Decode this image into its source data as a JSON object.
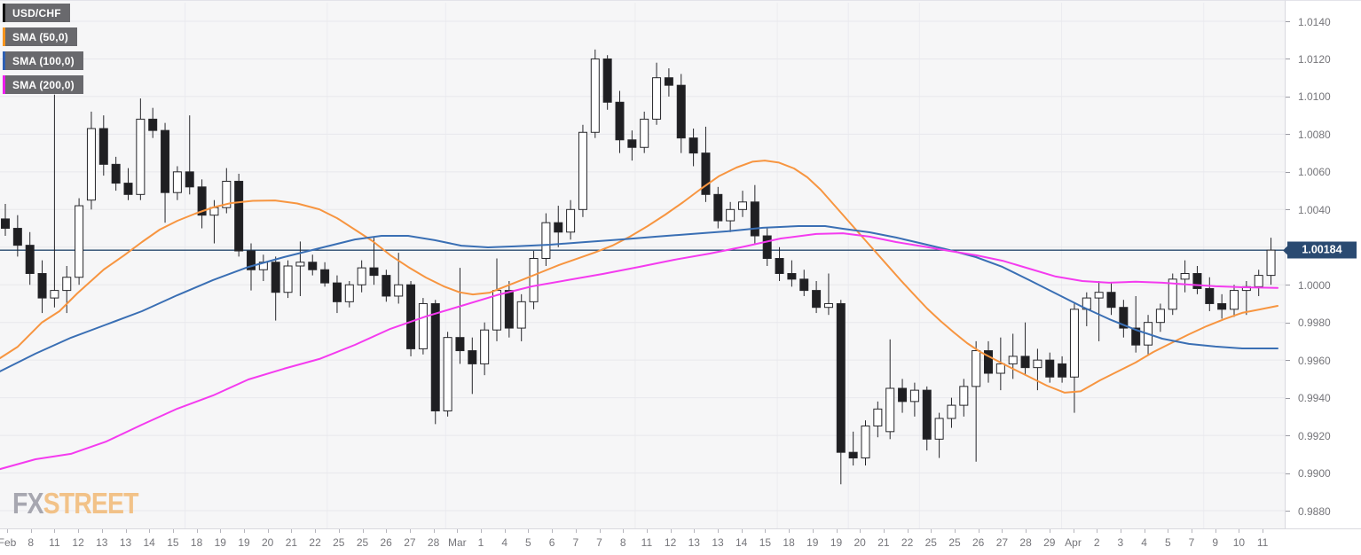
{
  "legend": {
    "symbol": {
      "label": "USD/CHF",
      "strip_color": "#111111"
    },
    "sma50": {
      "label": "SMA (50,0)",
      "strip_color": "#f7941d"
    },
    "sma100": {
      "label": "SMA (100,0)",
      "strip_color": "#2d5fb3"
    },
    "sma200": {
      "label": "SMA (200,0)",
      "strip_color": "#ee1cee"
    }
  },
  "watermark": {
    "fx": "FX",
    "street": "STREET"
  },
  "price_tag": {
    "text": "1.00184"
  },
  "colors": {
    "plot_bg": "#f6f6f7",
    "grid_h": "#e8e8ec",
    "grid_v": "#ececf0",
    "up_fill": "#ffffff",
    "down_fill": "#1f1f22",
    "candle_line": "#26262a",
    "sma50": "#f79540",
    "sma100": "#3a6fb4",
    "sma200": "#f43bef",
    "price_line": "#27496e",
    "axis_text": "#75757a"
  },
  "chart_data": {
    "type": "candlestick",
    "title": "USD/CHF",
    "indicators": [
      "SMA (50,0)",
      "SMA (100,0)",
      "SMA (200,0)"
    ],
    "last_price": 1.00184,
    "y_axis": {
      "min": 0.9868,
      "max": 1.0147,
      "tick_values": [
        1.014,
        1.012,
        1.01,
        1.008,
        1.006,
        1.004,
        1.002,
        1.0,
        0.998,
        0.996,
        0.994,
        0.992,
        0.99,
        0.988
      ],
      "tick_labels": [
        "1.0140",
        "1.0120",
        "1.0100",
        "1.0080",
        "1.0060",
        "1.0040",
        "",
        "1.0000",
        "0.9980",
        "0.9960",
        "0.9940",
        "0.9920",
        "0.9900",
        "0.9880"
      ]
    },
    "x_labels": [
      "Feb",
      "8",
      "11",
      "12",
      "13",
      "13",
      "14",
      "15",
      "18",
      "19",
      "19",
      "20",
      "21",
      "22",
      "25",
      "25",
      "26",
      "27",
      "28",
      "Mar",
      "1",
      "4",
      "5",
      "6",
      "7",
      "7",
      "8",
      "11",
      "12",
      "13",
      "13",
      "14",
      "15",
      "18",
      "19",
      "19",
      "20",
      "21",
      "22",
      "25",
      "25",
      "26",
      "27",
      "28",
      "29",
      "Apr",
      "2",
      "3",
      "4",
      "5",
      "7",
      "9",
      "10",
      "11"
    ],
    "v_gridline_label_idx": [
      8,
      14,
      19,
      27,
      33,
      36,
      39,
      45,
      51
    ],
    "candles_ohlc": [
      [
        1.0035,
        1.0043,
        1.0026,
        1.003
      ],
      [
        1.003,
        1.0037,
        1.0015,
        1.0021
      ],
      [
        1.0021,
        1.0028,
        1.0,
        1.0006
      ],
      [
        1.0006,
        1.0013,
        0.9985,
        0.9993
      ],
      [
        0.9993,
        1.0101,
        0.9988,
        0.9997
      ],
      [
        0.9997,
        1.001,
        0.9985,
        1.0004
      ],
      [
        1.0004,
        1.0046,
        1.0,
        1.0042
      ],
      [
        1.0045,
        1.0092,
        1.004,
        1.0083
      ],
      [
        1.0083,
        1.009,
        1.0058,
        1.0064
      ],
      [
        1.0064,
        1.0068,
        1.005,
        1.0054
      ],
      [
        1.0054,
        1.0062,
        1.0045,
        1.0048
      ],
      [
        1.0048,
        1.0099,
        1.0045,
        1.0088
      ],
      [
        1.0088,
        1.0094,
        1.0078,
        1.0082
      ],
      [
        1.0082,
        1.0086,
        1.0033,
        1.0049
      ],
      [
        1.0049,
        1.0063,
        1.0045,
        1.006
      ],
      [
        1.006,
        1.009,
        1.0048,
        1.0052
      ],
      [
        1.0052,
        1.0056,
        1.003,
        1.0037
      ],
      [
        1.0037,
        1.0045,
        1.0022,
        1.0041
      ],
      [
        1.0041,
        1.0062,
        1.0038,
        1.0055
      ],
      [
        1.0055,
        1.0059,
        1.0015,
        1.0018
      ],
      [
        1.0018,
        1.0022,
        0.9997,
        1.0008
      ],
      [
        1.0008,
        1.0016,
        1.0002,
        1.0012
      ],
      [
        1.0012,
        1.0015,
        0.9981,
        0.9996
      ],
      [
        0.9996,
        1.0013,
        0.9993,
        1.001
      ],
      [
        1.001,
        1.0023,
        0.9994,
        1.0012
      ],
      [
        1.0012,
        1.0016,
        1.0005,
        1.0008
      ],
      [
        1.0008,
        1.0012,
        0.9999,
        1.0001
      ],
      [
        1.0001,
        1.0005,
        0.9985,
        0.9991
      ],
      [
        0.9991,
        1.0002,
        0.9988,
        1.0
      ],
      [
        1.0,
        1.0013,
        0.9996,
        1.0009
      ],
      [
        1.0009,
        1.0025,
        1.0,
        1.0005
      ],
      [
        1.0005,
        1.0008,
        0.9991,
        0.9994
      ],
      [
        0.9994,
        1.0017,
        0.999,
        1.0
      ],
      [
        1.0,
        1.0002,
        0.9962,
        0.9966
      ],
      [
        0.9966,
        0.9993,
        0.9963,
        0.999
      ],
      [
        0.999,
        0.9992,
        0.9926,
        0.9933
      ],
      [
        0.9933,
        0.9975,
        0.993,
        0.9972
      ],
      [
        0.9972,
        1.0009,
        0.9958,
        0.9965
      ],
      [
        0.9965,
        0.9972,
        0.9942,
        0.9958
      ],
      [
        0.9958,
        0.998,
        0.9952,
        0.9976
      ],
      [
        0.9976,
        1.0014,
        0.997,
        0.9997
      ],
      [
        0.9997,
        1.0002,
        0.9972,
        0.9977
      ],
      [
        0.9977,
        0.9995,
        0.997,
        0.9991
      ],
      [
        0.9991,
        1.0018,
        0.9987,
        1.0014
      ],
      [
        1.0014,
        1.0038,
        1.001,
        1.0033
      ],
      [
        1.0033,
        1.0042,
        1.002,
        1.0028
      ],
      [
        1.0028,
        1.0045,
        1.0024,
        1.004
      ],
      [
        1.004,
        1.0085,
        1.0036,
        1.0081
      ],
      [
        1.0081,
        1.0125,
        1.0078,
        1.012
      ],
      [
        1.012,
        1.0122,
        1.0093,
        1.0097
      ],
      [
        1.0097,
        1.0103,
        1.007,
        1.0077
      ],
      [
        1.0077,
        1.0082,
        1.0066,
        1.0073
      ],
      [
        1.0073,
        1.0092,
        1.007,
        1.0088
      ],
      [
        1.0088,
        1.0118,
        1.0085,
        1.011
      ],
      [
        1.011,
        1.0115,
        1.01,
        1.0106
      ],
      [
        1.0106,
        1.0112,
        1.007,
        1.0078
      ],
      [
        1.0078,
        1.0083,
        1.0063,
        1.007
      ],
      [
        1.007,
        1.0084,
        1.0044,
        1.0048
      ],
      [
        1.0048,
        1.0052,
        1.003,
        1.0034
      ],
      [
        1.0034,
        1.0044,
        1.0028,
        1.004
      ],
      [
        1.004,
        1.005,
        1.0036,
        1.0044
      ],
      [
        1.0044,
        1.0053,
        1.0022,
        1.0026
      ],
      [
        1.0026,
        1.003,
        1.001,
        1.0014
      ],
      [
        1.0014,
        1.002,
        1.0002,
        1.0006
      ],
      [
        1.0006,
        1.0013,
        0.9999,
        1.0003
      ],
      [
        1.0003,
        1.0008,
        0.9994,
        0.9997
      ],
      [
        0.9997,
        1.0002,
        0.9985,
        0.9988
      ],
      [
        0.9988,
        1.0006,
        0.9984,
        0.999
      ],
      [
        0.999,
        0.9992,
        0.9894,
        0.9911
      ],
      [
        0.9911,
        0.9922,
        0.9904,
        0.9908
      ],
      [
        0.9908,
        0.9928,
        0.9904,
        0.9925
      ],
      [
        0.9925,
        0.9938,
        0.9919,
        0.9934
      ],
      [
        0.9922,
        0.9971,
        0.9918,
        0.9945
      ],
      [
        0.9945,
        0.995,
        0.9932,
        0.9938
      ],
      [
        0.9938,
        0.9948,
        0.993,
        0.9944
      ],
      [
        0.9944,
        0.9946,
        0.9912,
        0.9918
      ],
      [
        0.9918,
        0.9932,
        0.9908,
        0.9929
      ],
      [
        0.9929,
        0.994,
        0.9924,
        0.9936
      ],
      [
        0.9936,
        0.995,
        0.993,
        0.9946
      ],
      [
        0.9946,
        0.997,
        0.9906,
        0.9965
      ],
      [
        0.9965,
        0.997,
        0.9948,
        0.9953
      ],
      [
        0.9953,
        0.9972,
        0.9944,
        0.9958
      ],
      [
        0.9958,
        0.9974,
        0.995,
        0.9962
      ],
      [
        0.9962,
        0.998,
        0.9952,
        0.9956
      ],
      [
        0.9956,
        0.9966,
        0.9944,
        0.996
      ],
      [
        0.996,
        0.9964,
        0.9948,
        0.9951
      ],
      [
        0.9958,
        0.9962,
        0.9948,
        0.9951
      ],
      [
        0.9951,
        0.999,
        0.9932,
        0.9987
      ],
      [
        0.9987,
        0.9996,
        0.9978,
        0.9993
      ],
      [
        0.9993,
        1.0002,
        0.997,
        0.9996
      ],
      [
        0.9996,
        1.0001,
        0.9984,
        0.9988
      ],
      [
        0.9988,
        0.9992,
        0.9972,
        0.9977
      ],
      [
        0.9977,
        0.9994,
        0.9964,
        0.9968
      ],
      [
        0.9968,
        0.9984,
        0.9963,
        0.998
      ],
      [
        0.998,
        0.999,
        0.9975,
        0.9987
      ],
      [
        0.9987,
        1.0006,
        0.9984,
        1.0003
      ],
      [
        1.0003,
        1.0013,
        0.9996,
        1.0006
      ],
      [
        1.0006,
        1.001,
        0.9995,
        0.9998
      ],
      [
        0.9998,
        1.0004,
        0.9986,
        0.999
      ],
      [
        0.999,
        0.9995,
        0.9982,
        0.9987
      ],
      [
        0.9987,
        1.0,
        0.9983,
        0.9997
      ],
      [
        0.9997,
        1.0002,
        0.9984,
        0.9999
      ],
      [
        0.9999,
        1.0008,
        0.9994,
        1.0005
      ],
      [
        1.0005,
        1.0025,
        1.0,
        1.00184
      ]
    ],
    "sma50_xy": [
      [
        0,
        0.9961
      ],
      [
        20,
        0.99671
      ],
      [
        47,
        0.99799
      ],
      [
        67,
        0.9986
      ],
      [
        87,
        0.99954
      ],
      [
        117,
        1.00081
      ],
      [
        140,
        1.00157
      ],
      [
        160,
        1.00227
      ],
      [
        180,
        1.00293
      ],
      [
        200,
        1.0034
      ],
      [
        220,
        1.00378
      ],
      [
        240,
        1.00411
      ],
      [
        260,
        1.00434
      ],
      [
        285,
        1.00446
      ],
      [
        310,
        1.00448
      ],
      [
        335,
        1.00432
      ],
      [
        360,
        1.00401
      ],
      [
        380,
        1.00354
      ],
      [
        400,
        1.00293
      ],
      [
        420,
        1.00232
      ],
      [
        440,
        1.00157
      ],
      [
        460,
        1.00095
      ],
      [
        480,
        1.00039
      ],
      [
        500,
        0.99992
      ],
      [
        518,
        0.9996
      ],
      [
        533,
        0.99949
      ],
      [
        552,
        0.99958
      ],
      [
        570,
        0.99992
      ],
      [
        590,
        1.00029
      ],
      [
        610,
        1.00067
      ],
      [
        630,
        1.00105
      ],
      [
        650,
        1.00138
      ],
      [
        670,
        1.00171
      ],
      [
        690,
        1.00208
      ],
      [
        710,
        1.00256
      ],
      [
        730,
        1.00312
      ],
      [
        750,
        1.00373
      ],
      [
        770,
        1.00439
      ],
      [
        790,
        1.0051
      ],
      [
        810,
        1.00576
      ],
      [
        830,
        1.00623
      ],
      [
        848,
        1.00654
      ],
      [
        862,
        1.0066
      ],
      [
        878,
        1.00649
      ],
      [
        895,
        1.00618
      ],
      [
        910,
        1.00571
      ],
      [
        925,
        1.00505
      ],
      [
        940,
        1.00425
      ],
      [
        955,
        1.00345
      ],
      [
        970,
        1.00265
      ],
      [
        985,
        1.00185
      ],
      [
        1000,
        1.00105
      ],
      [
        1015,
        1.00025
      ],
      [
        1030,
        0.99949
      ],
      [
        1045,
        0.99874
      ],
      [
        1060,
        0.99808
      ],
      [
        1075,
        0.99747
      ],
      [
        1090,
        0.9969
      ],
      [
        1105,
        0.99643
      ],
      [
        1120,
        0.99606
      ],
      [
        1140,
        0.99558
      ],
      [
        1160,
        0.99511
      ],
      [
        1180,
        0.99464
      ],
      [
        1200,
        0.99427
      ],
      [
        1218,
        0.99434
      ],
      [
        1240,
        0.99493
      ],
      [
        1260,
        0.9954
      ],
      [
        1280,
        0.99587
      ],
      [
        1300,
        0.99643
      ],
      [
        1320,
        0.9969
      ],
      [
        1340,
        0.99737
      ],
      [
        1360,
        0.9978
      ],
      [
        1380,
        0.99818
      ],
      [
        1400,
        0.99851
      ],
      [
        1420,
        0.99869
      ],
      [
        1440,
        0.99888
      ]
    ],
    "sma100_xy": [
      [
        0,
        0.9954
      ],
      [
        40,
        0.99634
      ],
      [
        80,
        0.99719
      ],
      [
        120,
        0.99789
      ],
      [
        160,
        0.9986
      ],
      [
        200,
        0.99945
      ],
      [
        240,
        1.00025
      ],
      [
        280,
        1.00095
      ],
      [
        320,
        1.00147
      ],
      [
        360,
        1.00194
      ],
      [
        400,
        1.00241
      ],
      [
        430,
        1.0026
      ],
      [
        460,
        1.0026
      ],
      [
        490,
        1.00237
      ],
      [
        520,
        1.00208
      ],
      [
        550,
        1.00199
      ],
      [
        580,
        1.00204
      ],
      [
        620,
        1.00213
      ],
      [
        660,
        1.00227
      ],
      [
        700,
        1.00241
      ],
      [
        740,
        1.00256
      ],
      [
        780,
        1.0027
      ],
      [
        820,
        1.00284
      ],
      [
        860,
        1.00303
      ],
      [
        900,
        1.00312
      ],
      [
        930,
        1.00312
      ],
      [
        950,
        1.00298
      ],
      [
        980,
        1.00279
      ],
      [
        1010,
        1.00251
      ],
      [
        1040,
        1.00218
      ],
      [
        1070,
        1.00185
      ],
      [
        1100,
        1.00147
      ],
      [
        1130,
        1.00095
      ],
      [
        1160,
        1.00025
      ],
      [
        1190,
        0.99954
      ],
      [
        1220,
        0.99883
      ],
      [
        1250,
        0.99818
      ],
      [
        1280,
        0.99761
      ],
      [
        1310,
        0.99714
      ],
      [
        1340,
        0.99686
      ],
      [
        1370,
        0.99672
      ],
      [
        1400,
        0.99662
      ],
      [
        1440,
        0.99662
      ]
    ],
    "sma200_xy": [
      [
        0,
        0.99021
      ],
      [
        40,
        0.99073
      ],
      [
        80,
        0.99102
      ],
      [
        120,
        0.99168
      ],
      [
        160,
        0.99257
      ],
      [
        200,
        0.99342
      ],
      [
        240,
        0.99412
      ],
      [
        280,
        0.99497
      ],
      [
        320,
        0.99554
      ],
      [
        360,
        0.99606
      ],
      [
        400,
        0.99681
      ],
      [
        440,
        0.99766
      ],
      [
        480,
        0.99832
      ],
      [
        520,
        0.99888
      ],
      [
        560,
        0.99945
      ],
      [
        600,
        0.99992
      ],
      [
        640,
        1.00025
      ],
      [
        680,
        1.00058
      ],
      [
        720,
        1.00095
      ],
      [
        760,
        1.00133
      ],
      [
        800,
        1.00166
      ],
      [
        840,
        1.00204
      ],
      [
        880,
        1.00246
      ],
      [
        920,
        1.0027
      ],
      [
        950,
        1.00274
      ],
      [
        980,
        1.00256
      ],
      [
        1010,
        1.00227
      ],
      [
        1040,
        1.00204
      ],
      [
        1070,
        1.0018
      ],
      [
        1100,
        1.00157
      ],
      [
        1130,
        1.00128
      ],
      [
        1160,
        1.00086
      ],
      [
        1190,
        1.00044
      ],
      [
        1220,
        1.0002
      ],
      [
        1250,
        1.00011
      ],
      [
        1280,
        1.00016
      ],
      [
        1310,
        1.00011
      ],
      [
        1340,
        1.00001
      ],
      [
        1370,
        0.99992
      ],
      [
        1400,
        0.99987
      ],
      [
        1440,
        0.99983
      ]
    ]
  }
}
